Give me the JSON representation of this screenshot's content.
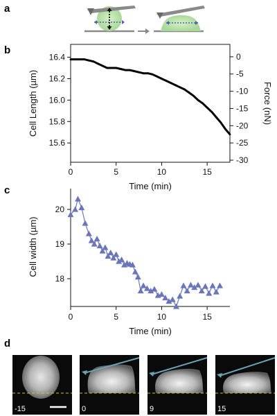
{
  "panels": {
    "a": "a",
    "b": "b",
    "c": "c",
    "d": "d"
  },
  "colors": {
    "force_trace": "#000000",
    "width_series": "#6b76b8",
    "cell_glow": "#b8e0a8",
    "cantilever": "#7f7f7f",
    "probe_line": "#6aa3b8",
    "substrate_line": "#c8c832"
  },
  "chart_data": [
    {
      "panel": "b",
      "type": "line",
      "xlabel": "Time (min)",
      "ylabel": "Cell Length (µm)",
      "y2label": "Force (nN)",
      "xlim": [
        0,
        17.5
      ],
      "ylim": [
        15.42,
        16.52
      ],
      "y2lim": [
        -30.6,
        3.6
      ],
      "x_ticks": [
        0,
        5,
        10,
        15
      ],
      "y_ticks": [
        15.6,
        15.8,
        16.0,
        16.2,
        16.4
      ],
      "y2_ticks": [
        0,
        -5,
        -10,
        -15,
        -20,
        -25,
        -30
      ],
      "grid": false,
      "x": [
        0,
        0.5,
        1,
        1.5,
        2,
        2.5,
        3,
        3.5,
        4,
        4.5,
        5,
        5.5,
        6,
        6.5,
        7,
        7.5,
        8,
        8.5,
        9,
        9.5,
        10,
        10.5,
        11,
        11.5,
        12,
        12.5,
        13,
        13.5,
        14,
        14.5,
        15,
        15.5,
        16,
        16.5,
        17,
        17.5
      ],
      "values": [
        16.38,
        16.38,
        16.38,
        16.38,
        16.37,
        16.36,
        16.34,
        16.32,
        16.3,
        16.3,
        16.3,
        16.29,
        16.28,
        16.28,
        16.27,
        16.26,
        16.25,
        16.25,
        16.24,
        16.22,
        16.2,
        16.18,
        16.16,
        16.14,
        16.12,
        16.1,
        16.07,
        16.04,
        16.0,
        15.97,
        15.93,
        15.89,
        15.84,
        15.79,
        15.73,
        15.68
      ]
    },
    {
      "panel": "c",
      "type": "line",
      "xlabel": "Time (min)",
      "ylabel": "Cell width (µm)",
      "xlim": [
        0,
        17.5
      ],
      "ylim": [
        17.2,
        20.6
      ],
      "x_ticks": [
        0,
        5,
        10,
        15
      ],
      "y_ticks": [
        18,
        19,
        20
      ],
      "grid": false,
      "marker": "triangle",
      "x": [
        0,
        0.5,
        0.8,
        1.2,
        1.6,
        2,
        2.3,
        2.6,
        2.9,
        3.2,
        3.5,
        3.8,
        4.1,
        4.4,
        4.7,
        5,
        5.3,
        5.6,
        5.9,
        6.2,
        6.5,
        6.8,
        7.1,
        7.4,
        7.7,
        8,
        8.4,
        8.8,
        9.2,
        9.6,
        10,
        10.4,
        10.8,
        11.2,
        11.6,
        12,
        12.4,
        12.8,
        13.2,
        13.6,
        14,
        14.4,
        14.8,
        15.2,
        15.6,
        16,
        16.4
      ],
      "values": [
        19.85,
        20.0,
        20.3,
        20.05,
        19.6,
        19.3,
        19.1,
        19.0,
        19.15,
        18.95,
        18.8,
        18.9,
        18.65,
        18.75,
        18.6,
        18.7,
        18.5,
        18.55,
        18.4,
        18.45,
        18.42,
        18.4,
        18.2,
        18.05,
        17.65,
        17.8,
        17.72,
        17.65,
        17.7,
        17.52,
        17.55,
        17.45,
        17.35,
        17.4,
        17.2,
        17.5,
        17.8,
        17.65,
        17.82,
        17.75,
        17.82,
        17.65,
        17.78,
        17.58,
        17.8,
        17.62,
        17.8
      ]
    }
  ],
  "micrographs": [
    {
      "time_label": "-15",
      "has_probe": false,
      "has_scalebar": true
    },
    {
      "time_label": "0",
      "has_probe": true,
      "has_scalebar": false
    },
    {
      "time_label": "9",
      "has_probe": true,
      "has_scalebar": false
    },
    {
      "time_label": "15",
      "has_probe": true,
      "has_scalebar": false
    }
  ]
}
